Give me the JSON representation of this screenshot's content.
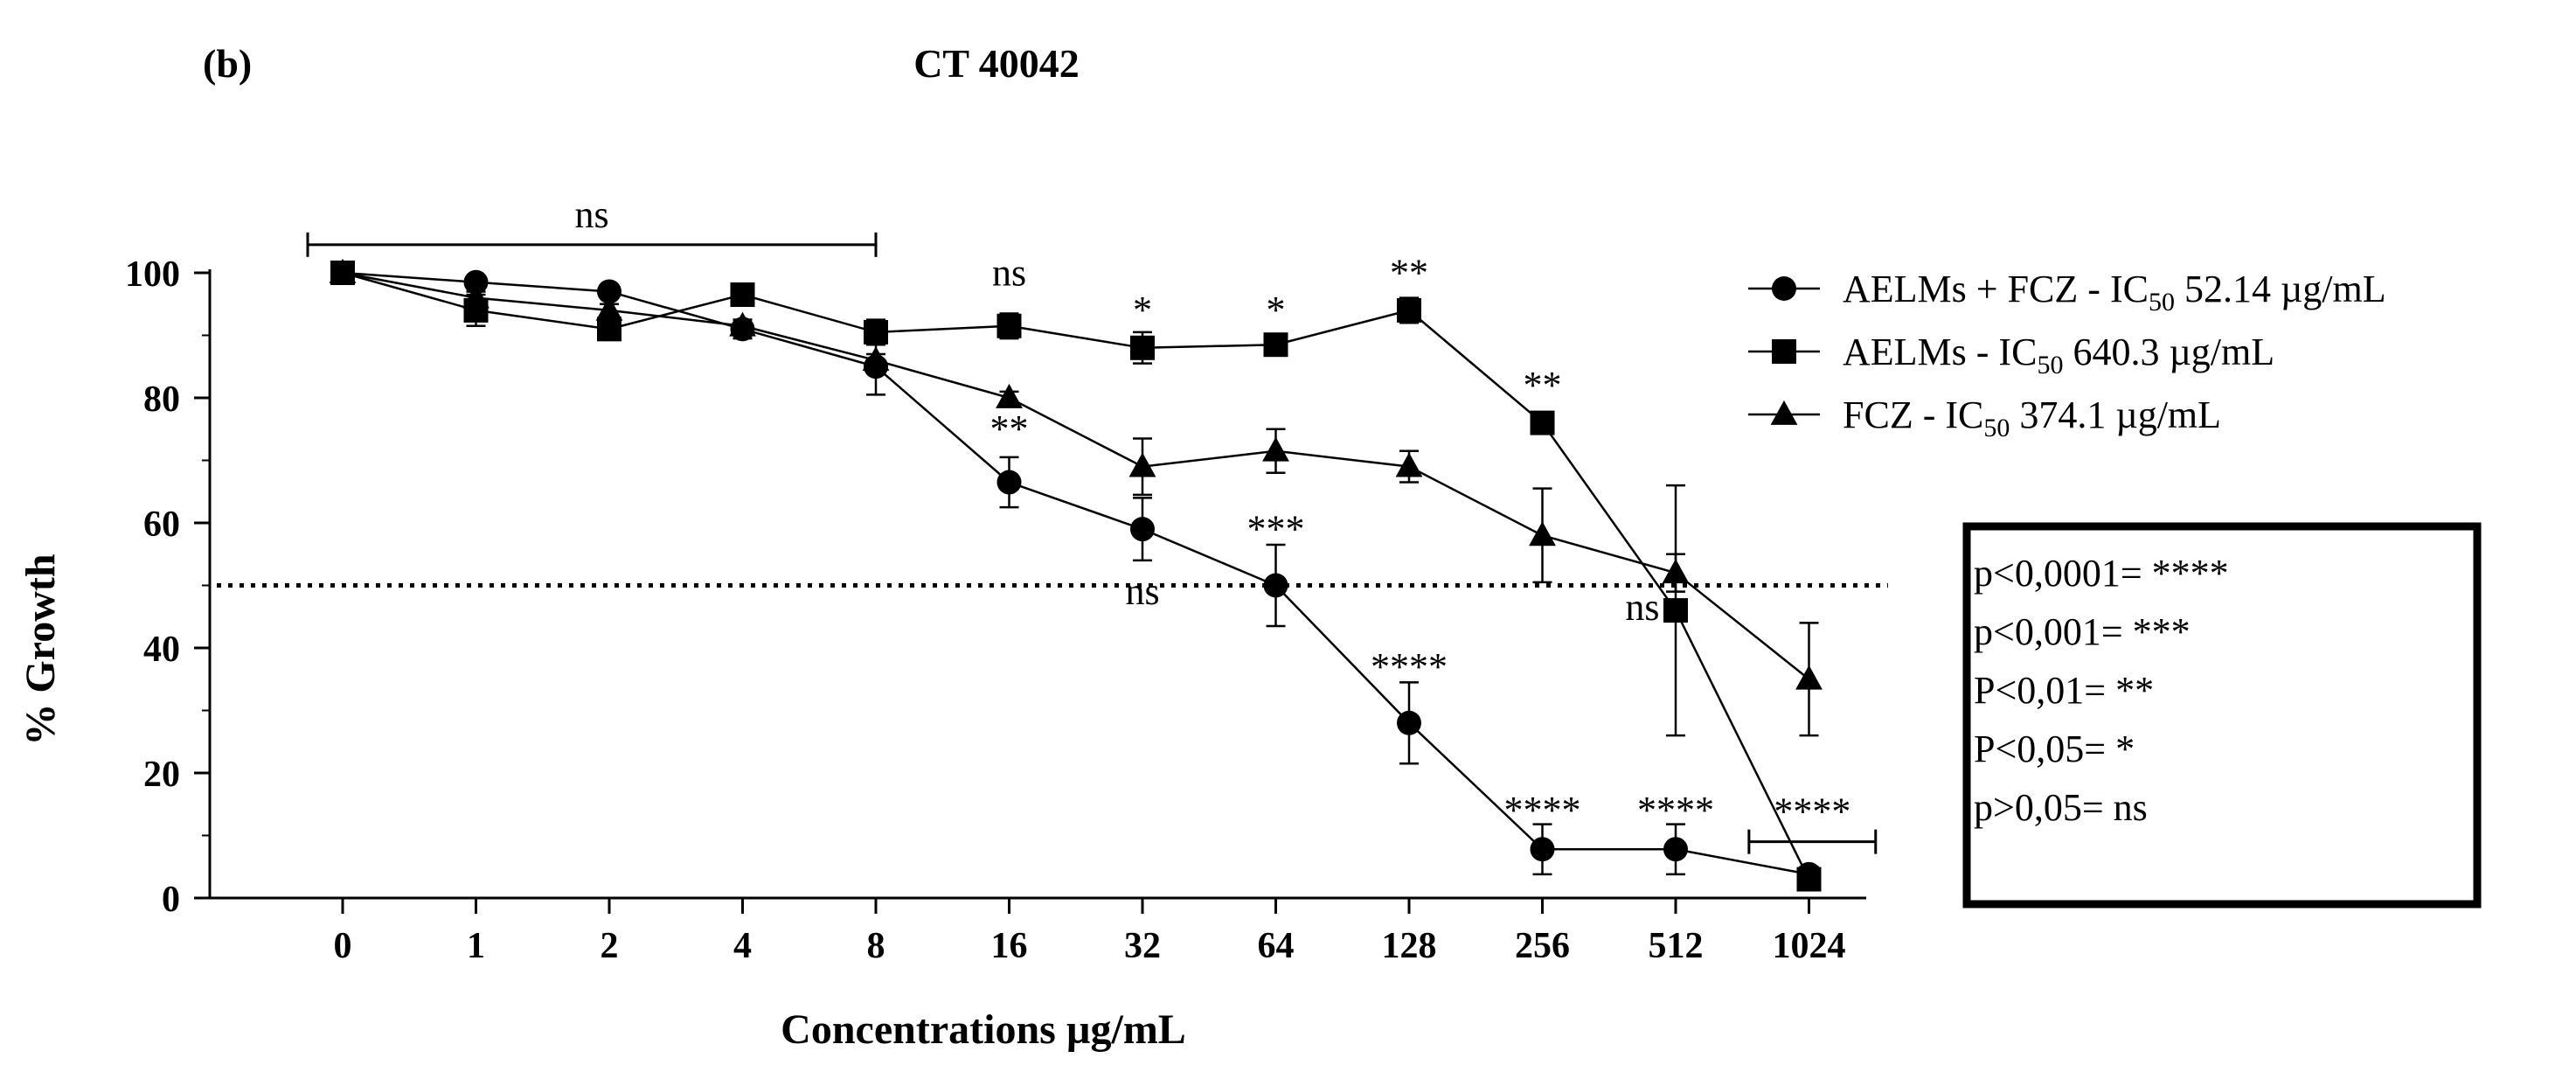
{
  "panel_label": "(b)",
  "chart_data": {
    "type": "line",
    "title": "CT 40042",
    "xlabel": "Concentrations µg/mL",
    "ylabel": "% Growth",
    "categories": [
      "0",
      "1",
      "2",
      "4",
      "8",
      "16",
      "32",
      "64",
      "128",
      "256",
      "512",
      "1024"
    ],
    "ylim": [
      0,
      100
    ],
    "yticks": [
      0,
      20,
      40,
      60,
      80,
      100
    ],
    "threshold": 50,
    "series": [
      {
        "name": "AELMs + FCZ",
        "marker": "circle",
        "legend_label": "AELMs + FCZ - IC",
        "legend_sub": "50",
        "legend_value": "52.14",
        "legend_unit": "µg/mL",
        "values": [
          100,
          98.5,
          97,
          91,
          85,
          66.5,
          59,
          50,
          28,
          7.8,
          7.8,
          3.8
        ],
        "errors": [
          0,
          1,
          1,
          1.5,
          4.5,
          4,
          5,
          6.5,
          6.5,
          4,
          4,
          1.2
        ]
      },
      {
        "name": "AELMs",
        "marker": "square",
        "legend_label": "AELMs - IC",
        "legend_sub": "50",
        "legend_value": "640.3",
        "legend_unit": "µg/mL",
        "values": [
          100,
          94,
          91,
          96.5,
          90.5,
          91.5,
          88,
          88.5,
          94,
          76,
          46,
          3
        ],
        "errors": [
          0,
          2.5,
          1.5,
          1.2,
          2,
          2,
          2.5,
          1,
          2,
          1.5,
          20,
          0.8
        ]
      },
      {
        "name": "FCZ",
        "marker": "triangle",
        "legend_label": "FCZ - IC",
        "legend_sub": "50",
        "legend_value": "374.1",
        "legend_unit": "µg/mL",
        "values": [
          100,
          96,
          94,
          91.5,
          86,
          80,
          69,
          71.5,
          69,
          58,
          52,
          35
        ],
        "errors": [
          0,
          1,
          1,
          1,
          1,
          1,
          4.5,
          3.5,
          2.5,
          7.5,
          3,
          9
        ]
      }
    ],
    "annotations": [
      {
        "text": "ns",
        "kind": "bracket",
        "from": 0,
        "to": 4,
        "y": 104.5
      },
      {
        "text": "ns",
        "at": 5,
        "y": 98
      },
      {
        "text": "*",
        "at": 6,
        "y": 92
      },
      {
        "text": "*",
        "at": 7,
        "y": 92
      },
      {
        "text": "**",
        "at": 8,
        "y": 98
      },
      {
        "text": "**",
        "at": 5,
        "y": 73
      },
      {
        "text": "ns",
        "at": 6,
        "y": 47
      },
      {
        "text": "***",
        "at": 7,
        "y": 57
      },
      {
        "text": "**",
        "at": 9,
        "y": 80
      },
      {
        "text": "****",
        "at": 8,
        "y": 35
      },
      {
        "text": "ns",
        "at": 9.75,
        "y": 44.5
      },
      {
        "text": "****",
        "at": 9,
        "y": 12
      },
      {
        "text": "****",
        "at": 10,
        "y": 12
      },
      {
        "text": "****",
        "kind": "bracket",
        "from": 10.55,
        "to": 11.5,
        "y": 9
      }
    ],
    "significance_key": [
      "p<0,0001= ****",
      "p<0,001= ***",
      "P<0,01= **",
      "P<0,05= *",
      "p>0,05= ns"
    ]
  }
}
